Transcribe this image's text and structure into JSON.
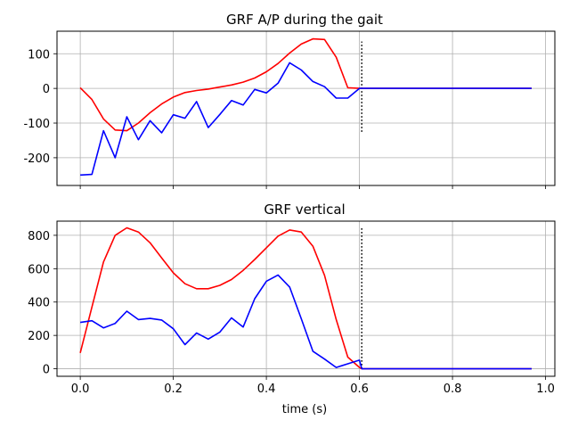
{
  "chart_data": [
    {
      "type": "line",
      "title": "GRF A/P  during the gait",
      "xlabel": "",
      "ylabel": "",
      "xlim": [
        -0.05,
        1.02
      ],
      "ylim": [
        -280,
        165
      ],
      "xticks": [
        0.0,
        0.2,
        0.4,
        0.6,
        0.8,
        1.0
      ],
      "xtick_labels_visible": false,
      "yticks": [
        -200,
        -100,
        0,
        100
      ],
      "grid": true,
      "vline": {
        "x": 0.605,
        "y_range": [
          -125,
          135
        ],
        "style": "dotted",
        "color": "#000000"
      },
      "series": [
        {
          "color": "#ff0000",
          "x": [
            0.0,
            0.025,
            0.05,
            0.075,
            0.1,
            0.125,
            0.15,
            0.175,
            0.2,
            0.225,
            0.25,
            0.275,
            0.3,
            0.325,
            0.35,
            0.375,
            0.4,
            0.425,
            0.45,
            0.475,
            0.5,
            0.525,
            0.55,
            0.575,
            0.6,
            0.605,
            0.97
          ],
          "y": [
            2,
            -32,
            -88,
            -120,
            -122,
            -100,
            -70,
            -45,
            -25,
            -12,
            -6,
            -2,
            4,
            10,
            18,
            30,
            48,
            72,
            102,
            128,
            143,
            141,
            90,
            2,
            0,
            0,
            0
          ]
        },
        {
          "color": "#0000ff",
          "x": [
            0.0,
            0.025,
            0.05,
            0.075,
            0.1,
            0.125,
            0.15,
            0.175,
            0.2,
            0.225,
            0.25,
            0.275,
            0.3,
            0.325,
            0.35,
            0.375,
            0.4,
            0.425,
            0.45,
            0.475,
            0.5,
            0.525,
            0.55,
            0.575,
            0.6,
            0.605,
            0.97
          ],
          "y": [
            -250,
            -248,
            -122,
            -200,
            -82,
            -148,
            -93,
            -128,
            -76,
            -86,
            -38,
            -113,
            -75,
            -35,
            -48,
            -3,
            -13,
            15,
            74,
            53,
            20,
            5,
            -28,
            -28,
            0,
            0,
            0
          ]
        }
      ]
    },
    {
      "type": "line",
      "title": "GRF vertical",
      "xlabel": "time (s)",
      "ylabel": "",
      "xlim": [
        -0.05,
        1.02
      ],
      "ylim": [
        -45,
        885
      ],
      "xticks": [
        0.0,
        0.2,
        0.4,
        0.6,
        0.8,
        1.0
      ],
      "xtick_labels": [
        "0.0",
        "0.2",
        "0.4",
        "0.6",
        "0.8",
        "1.0"
      ],
      "xtick_labels_visible": true,
      "yticks": [
        0,
        200,
        400,
        600,
        800
      ],
      "grid": true,
      "vline": {
        "x": 0.605,
        "y_range": [
          0,
          845
        ],
        "style": "dotted",
        "color": "#000000"
      },
      "series": [
        {
          "color": "#ff0000",
          "x": [
            0.0,
            0.025,
            0.05,
            0.075,
            0.1,
            0.125,
            0.15,
            0.175,
            0.2,
            0.225,
            0.25,
            0.275,
            0.3,
            0.325,
            0.35,
            0.375,
            0.4,
            0.425,
            0.45,
            0.475,
            0.5,
            0.525,
            0.55,
            0.575,
            0.6,
            0.605,
            0.97
          ],
          "y": [
            95,
            370,
            640,
            800,
            845,
            820,
            755,
            665,
            575,
            510,
            480,
            480,
            500,
            535,
            590,
            655,
            725,
            795,
            832,
            820,
            735,
            560,
            295,
            70,
            8,
            0,
            0
          ]
        },
        {
          "color": "#0000ff",
          "x": [
            0.0,
            0.025,
            0.05,
            0.075,
            0.1,
            0.125,
            0.15,
            0.175,
            0.2,
            0.225,
            0.25,
            0.275,
            0.3,
            0.325,
            0.35,
            0.375,
            0.4,
            0.425,
            0.45,
            0.475,
            0.5,
            0.525,
            0.55,
            0.575,
            0.6,
            0.605,
            0.97
          ],
          "y": [
            278,
            288,
            245,
            272,
            345,
            295,
            302,
            292,
            240,
            145,
            215,
            178,
            220,
            305,
            250,
            420,
            525,
            562,
            490,
            300,
            105,
            58,
            8,
            30,
            52,
            0,
            0
          ]
        }
      ]
    }
  ]
}
